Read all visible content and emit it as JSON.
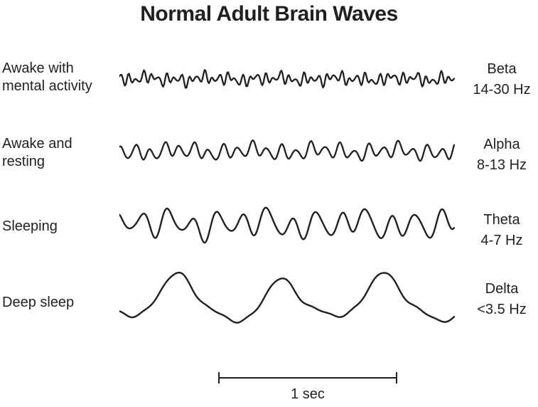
{
  "title": "Normal Adult Brain Waves",
  "colors": {
    "ink": "#231f20",
    "background": "#ffffff"
  },
  "scalebar": {
    "label": "1 sec",
    "seconds": 1
  },
  "rows": [
    {
      "id": "beta",
      "state": "Awake with\nmental activity",
      "band": "Beta",
      "freq": "14-30 Hz",
      "wave": {
        "stroke": 2.3,
        "components": [
          {
            "c": 44,
            "a": 5.5,
            "p": 0.3
          },
          {
            "c": 27,
            "a": 3.2,
            "p": 2.1
          },
          {
            "c": 61,
            "a": 1.8,
            "p": 4.0
          },
          {
            "c": 12.5,
            "a": 2.2,
            "p": 1.2
          },
          {
            "c": 5.3,
            "a": 1.5,
            "p": 5.1
          }
        ]
      }
    },
    {
      "id": "alpha",
      "state": "Awake and\nresting",
      "band": "Alpha",
      "freq": "8-13 Hz",
      "wave": {
        "stroke": 2.3,
        "components": [
          {
            "c": 23,
            "a": 8.5,
            "p": 0.8
          },
          {
            "c": 11.5,
            "a": 3.5,
            "p": 3.9
          },
          {
            "c": 35,
            "a": 1.6,
            "p": 1.7
          },
          {
            "c": 4.7,
            "a": 2.8,
            "p": 2.6
          }
        ]
      }
    },
    {
      "id": "theta",
      "state": "Sleeping",
      "band": "Theta",
      "freq": "4-7 Hz",
      "wave": {
        "stroke": 2.4,
        "components": [
          {
            "c": 13.5,
            "a": 15,
            "p": 1.9
          },
          {
            "c": 7.2,
            "a": 6,
            "p": 0.4
          },
          {
            "c": 20.5,
            "a": 3.5,
            "p": 3.3
          },
          {
            "c": 3.4,
            "a": 4,
            "p": 5.6
          }
        ]
      }
    },
    {
      "id": "delta",
      "state": "Deep sleep",
      "band": "Delta",
      "freq": "<3.5 Hz",
      "wave": {
        "stroke": 2.4,
        "components": [
          {
            "c": 3.25,
            "a": 28,
            "p": 4.2
          },
          {
            "c": 6.5,
            "a": 7,
            "p": 1.1
          },
          {
            "c": 1.6,
            "a": 5,
            "p": 0.5
          },
          {
            "c": 9.8,
            "a": 2.2,
            "p": 2.9
          },
          {
            "c": 16,
            "a": 1.2,
            "p": 0.9
          }
        ]
      }
    }
  ]
}
